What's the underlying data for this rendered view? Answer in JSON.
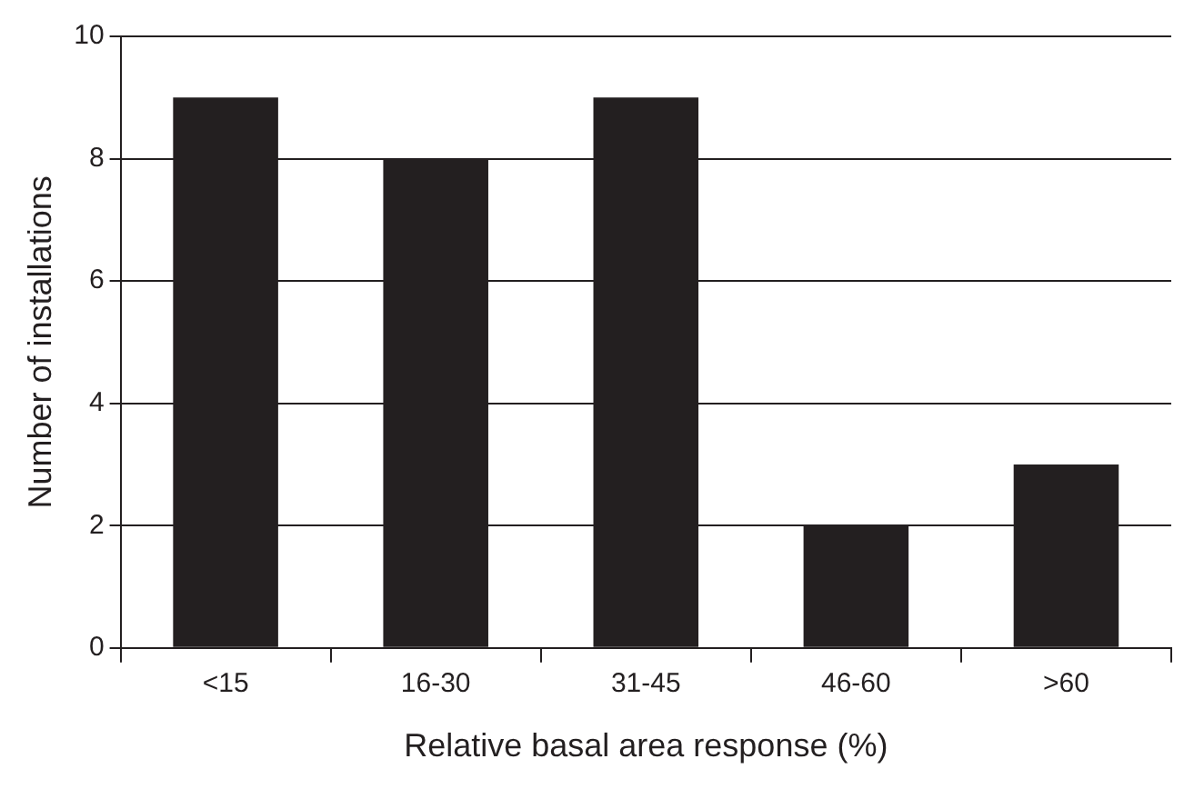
{
  "chart_data": {
    "type": "bar",
    "xlabel": "Relative basal area response (%)",
    "ylabel": "Number of installations",
    "categories": [
      "<15",
      "16-30",
      "31-45",
      "46-60",
      ">60"
    ],
    "values": [
      9,
      8,
      9,
      2,
      3
    ],
    "color": "#231f20",
    "ylim": [
      0,
      10
    ],
    "yticks": [
      0,
      2,
      4,
      6,
      8,
      10
    ],
    "grid": "y"
  }
}
